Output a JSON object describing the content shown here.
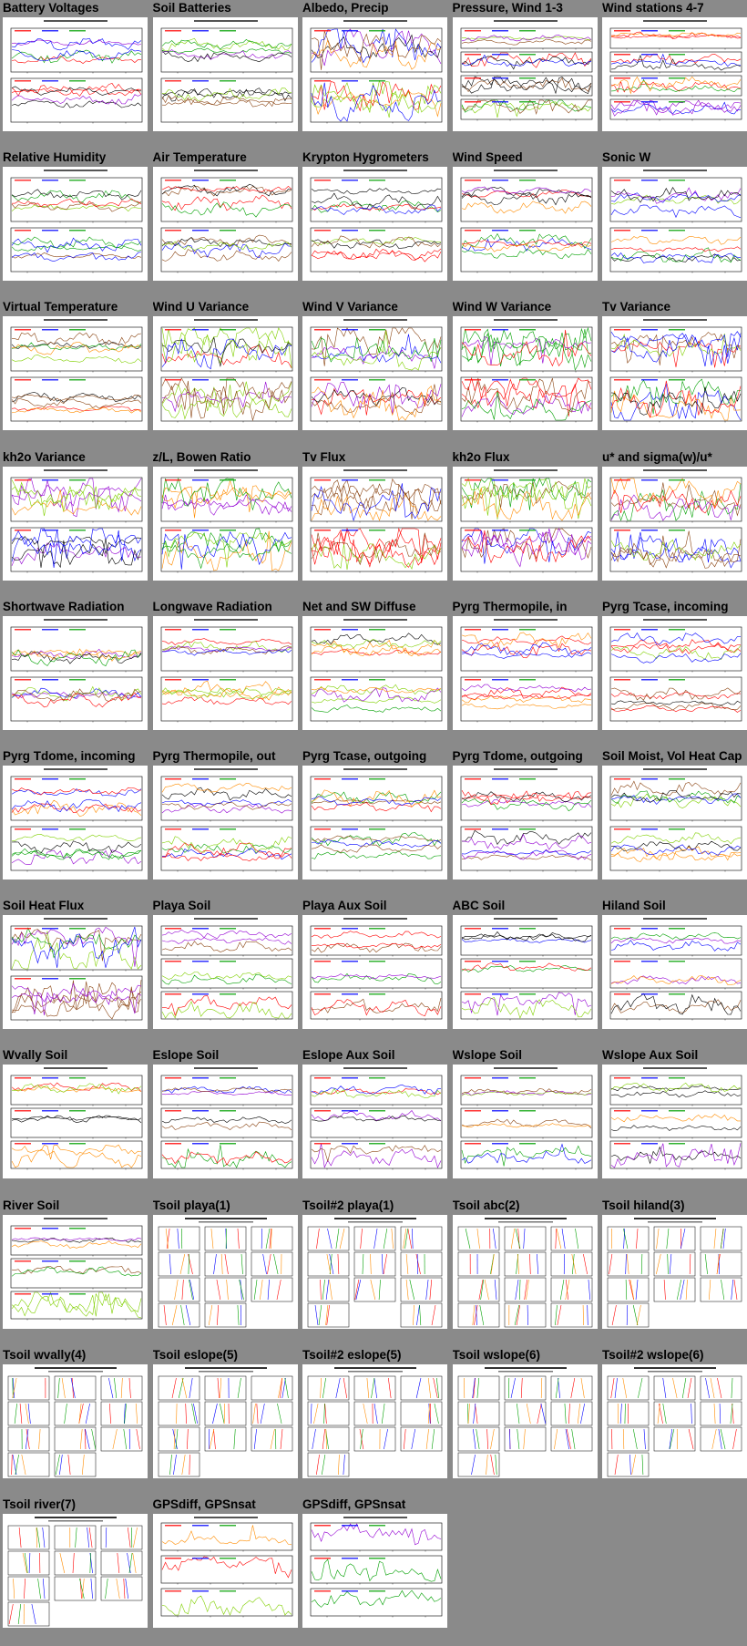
{
  "gallery": {
    "items": [
      {
        "title": "Battery Voltages",
        "kind": "two-panel"
      },
      {
        "title": "Soil Batteries",
        "kind": "two-panel"
      },
      {
        "title": "Albedo, Precip",
        "kind": "two-panel"
      },
      {
        "title": "Pressure, Wind 1-3",
        "kind": "four-panel"
      },
      {
        "title": "Wind stations 4-7",
        "kind": "four-panel"
      },
      {
        "title": "Relative Humidity",
        "kind": "two-panel"
      },
      {
        "title": "Air Temperature",
        "kind": "two-panel"
      },
      {
        "title": "Krypton Hygrometers",
        "kind": "two-panel"
      },
      {
        "title": "Wind Speed",
        "kind": "two-panel"
      },
      {
        "title": "Sonic W",
        "kind": "two-panel"
      },
      {
        "title": "Virtual Temperature",
        "kind": "two-panel"
      },
      {
        "title": "Wind U Variance",
        "kind": "two-panel"
      },
      {
        "title": "Wind V Variance",
        "kind": "two-panel"
      },
      {
        "title": "Wind W Variance",
        "kind": "two-panel"
      },
      {
        "title": "Tv Variance",
        "kind": "two-panel"
      },
      {
        "title": "kh2o Variance",
        "kind": "two-panel"
      },
      {
        "title": "z/L, Bowen Ratio",
        "kind": "two-panel"
      },
      {
        "title": "Tv Flux",
        "kind": "two-panel"
      },
      {
        "title": "kh2o Flux",
        "kind": "two-panel"
      },
      {
        "title": "u* and sigma(w)/u*",
        "kind": "two-panel"
      },
      {
        "title": "Shortwave Radiation",
        "kind": "two-panel"
      },
      {
        "title": "Longwave Radiation",
        "kind": "two-panel"
      },
      {
        "title": "Net and SW Diffuse",
        "kind": "two-panel"
      },
      {
        "title": "Pyrg Thermopile, in",
        "kind": "two-panel"
      },
      {
        "title": "Pyrg Tcase, incoming",
        "kind": "two-panel"
      },
      {
        "title": "Pyrg Tdome, incoming",
        "kind": "two-panel"
      },
      {
        "title": "Pyrg Thermopile, out",
        "kind": "two-panel"
      },
      {
        "title": "Pyrg Tcase, outgoing",
        "kind": "two-panel"
      },
      {
        "title": "Pyrg Tdome, outgoing",
        "kind": "two-panel"
      },
      {
        "title": "Soil Moist, Vol Heat Cap",
        "kind": "two-panel"
      },
      {
        "title": "Soil Heat Flux",
        "kind": "two-panel"
      },
      {
        "title": "Playa Soil",
        "kind": "three-panel"
      },
      {
        "title": "Playa Aux Soil",
        "kind": "three-panel"
      },
      {
        "title": "ABC Soil",
        "kind": "three-panel"
      },
      {
        "title": "Hiland Soil",
        "kind": "three-panel"
      },
      {
        "title": "Wvally Soil",
        "kind": "three-panel"
      },
      {
        "title": "Eslope Soil",
        "kind": "three-panel"
      },
      {
        "title": "Eslope Aux Soil",
        "kind": "three-panel"
      },
      {
        "title": "Wslope Soil",
        "kind": "three-panel"
      },
      {
        "title": "Wslope Aux Soil",
        "kind": "three-panel"
      },
      {
        "title": "River Soil",
        "kind": "three-panel"
      },
      {
        "title": "Tsoil playa(1)",
        "kind": "profile"
      },
      {
        "title": "Tsoil#2 playa(1)",
        "kind": "profile"
      },
      {
        "title": "Tsoil abc(2)",
        "kind": "profile"
      },
      {
        "title": "Tsoil hiland(3)",
        "kind": "profile"
      },
      {
        "title": "Tsoil wvally(4)",
        "kind": "profile"
      },
      {
        "title": "Tsoil eslope(5)",
        "kind": "profile"
      },
      {
        "title": "Tsoil#2 eslope(5)",
        "kind": "profile"
      },
      {
        "title": "Tsoil wslope(6)",
        "kind": "profile"
      },
      {
        "title": "Tsoil#2 wslope(6)",
        "kind": "profile"
      },
      {
        "title": "Tsoil river(7)",
        "kind": "profile"
      },
      {
        "title": "GPSdiff, GPSnsat",
        "kind": "gps"
      },
      {
        "title": "GPSdiff, GPSnsat",
        "kind": "gps"
      }
    ]
  },
  "colors": {
    "page_background": "#8a8a8a",
    "thumbnail_background": "#ffffff",
    "series": [
      "#ff0000",
      "#0000ff",
      "#00a000",
      "#ff8c00",
      "#9400d3",
      "#80d000",
      "#8b4513",
      "#000000"
    ]
  }
}
